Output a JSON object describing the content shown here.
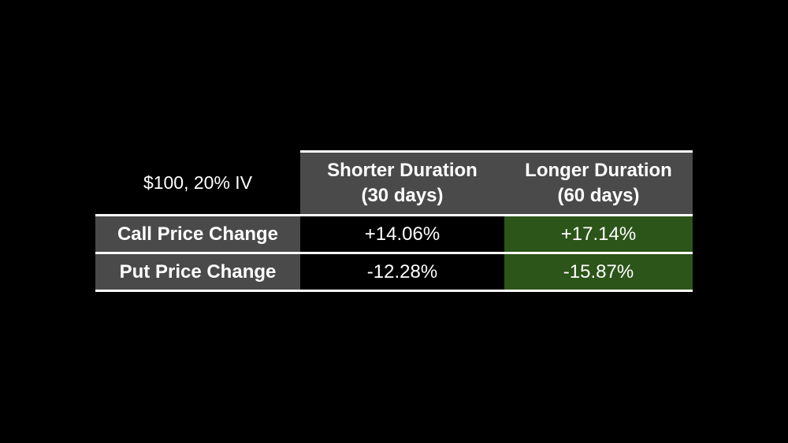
{
  "table": {
    "corner": "$100, 20% IV",
    "columns": [
      [
        "Shorter Duration",
        "(30 days)"
      ],
      [
        "Longer Duration",
        "(60 days)"
      ]
    ],
    "rows": [
      [
        "Call Price Change",
        "+14.06%",
        "+17.14%"
      ],
      [
        "Put Price Change",
        "-12.28%",
        "-15.87%"
      ]
    ]
  }
}
